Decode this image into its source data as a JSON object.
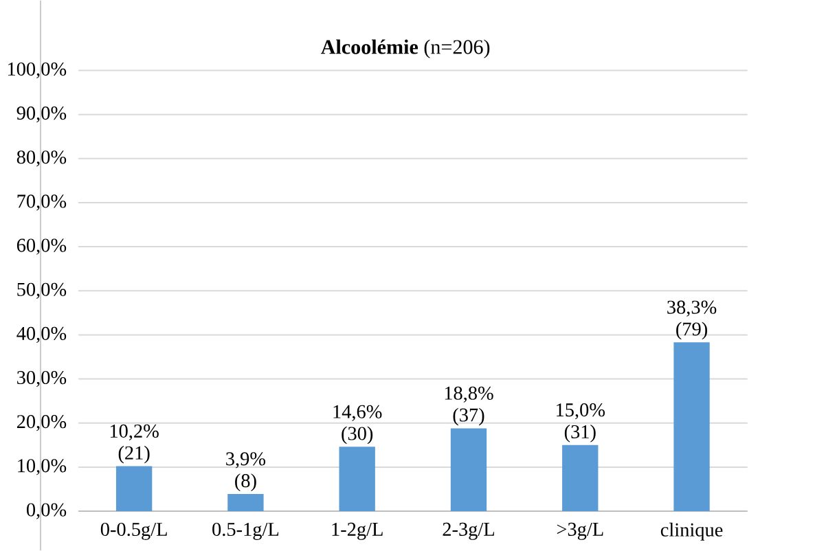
{
  "chart_data": {
    "type": "bar",
    "title": "**Alcoolémie** (n=206)",
    "categories": [
      "0-0.5g/L",
      "0.5-1g/L",
      "1-2g/L",
      "2-3g/L",
      ">3g/L",
      "clinique"
    ],
    "values": [
      10.2,
      3.9,
      14.6,
      18.8,
      15.0,
      38.3
    ],
    "value_labels": [
      "10,2% (21)",
      "3,9% (8)",
      "14,6% (30)",
      "18,8% (37)",
      "15,0% (31)",
      "38,3% (79)"
    ],
    "color": "#5b9bd5",
    "ylim": [
      0,
      100
    ],
    "yticks": [
      {
        "value": 0,
        "label": "0,0%"
      },
      {
        "value": 10,
        "label": "10,0%"
      },
      {
        "value": 20,
        "label": "20,0%"
      },
      {
        "value": 30,
        "label": "30,0%"
      },
      {
        "value": 40,
        "label": "40,0%"
      },
      {
        "value": 50,
        "label": "50,0%"
      },
      {
        "value": 60,
        "label": "60,0%"
      },
      {
        "value": 70,
        "label": "70,0%"
      },
      {
        "value": 80,
        "label": "80,0%"
      },
      {
        "value": 90,
        "label": "90,0%"
      },
      {
        "value": 100,
        "label": "100,0%"
      }
    ],
    "grid": "y"
  }
}
